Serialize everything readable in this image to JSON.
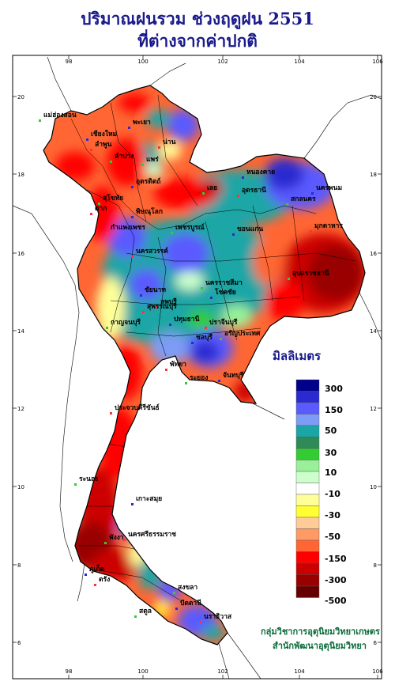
{
  "title": {
    "line1": "ปริมาณฝนรวม ช่วงฤดูฝน 2551",
    "line2": "ที่ต่างจากค่าปกติ"
  },
  "axes": {
    "lon_labels": [
      "98",
      "100",
      "102",
      "104",
      "106"
    ],
    "lat_labels": [
      "20",
      "18",
      "16",
      "14",
      "12",
      "10",
      "8",
      "6"
    ]
  },
  "legend": {
    "title": "มิลลิเมตร",
    "bins": [
      {
        "color": "#00008b"
      },
      {
        "color": "#2a2ad0"
      },
      {
        "color": "#5a5aff"
      },
      {
        "color": "#7d9cf5"
      },
      {
        "color": "#1aa6a6"
      },
      {
        "color": "#2e8b57"
      },
      {
        "color": "#33cc33"
      },
      {
        "color": "#99f099"
      },
      {
        "color": "#ccffcc"
      },
      {
        "color": "#ffffff"
      },
      {
        "color": "#ffff99"
      },
      {
        "color": "#ffff33"
      },
      {
        "color": "#ffcc99"
      },
      {
        "color": "#ff9966"
      },
      {
        "color": "#ff6633"
      },
      {
        "color": "#ff0000"
      },
      {
        "color": "#cc0000"
      },
      {
        "color": "#990000"
      },
      {
        "color": "#660000"
      }
    ],
    "labels": [
      {
        "text": "300"
      },
      {
        "text": "150"
      },
      {
        "text": "50"
      },
      {
        "text": "30"
      },
      {
        "text": "10"
      },
      {
        "text": "-10"
      },
      {
        "text": "-30"
      },
      {
        "text": "-50"
      },
      {
        "text": "-150"
      },
      {
        "text": "-300"
      },
      {
        "text": "-500"
      }
    ]
  },
  "credit": {
    "line1": "กลุ่มวิชาการอุตุนิยมวิทยาเกษตร",
    "line2": "สำนักพัฒนาอุตุนิยมวิทยา"
  },
  "cities": [
    {
      "name": "แม่ฮ่องสอน"
    },
    {
      "name": "เชียงใหม่"
    },
    {
      "name": "ลำพูน"
    },
    {
      "name": "ลำปาง"
    },
    {
      "name": "พะเยา"
    },
    {
      "name": "น่าน"
    },
    {
      "name": "แพร่"
    },
    {
      "name": "อุตรดิตถ์"
    },
    {
      "name": "ตาก"
    },
    {
      "name": "สุโขทัย"
    },
    {
      "name": "พิษณุโลก"
    },
    {
      "name": "กำแพงเพชร"
    },
    {
      "name": "เพชรบูรณ์"
    },
    {
      "name": "หนองคาย"
    },
    {
      "name": "อุดรธานี"
    },
    {
      "name": "สกลนคร"
    },
    {
      "name": "นครพนม"
    },
    {
      "name": "มุกดาหาร"
    },
    {
      "name": "เลย"
    },
    {
      "name": "ขอนแก่น"
    },
    {
      "name": "นครสวรรค์"
    },
    {
      "name": "อุบลราชธานี"
    },
    {
      "name": "ชัยนาท"
    },
    {
      "name": "ลพบุรี"
    },
    {
      "name": "นครราชสีมา"
    },
    {
      "name": "โชคชัย"
    },
    {
      "name": "สุพรรณบุรี"
    },
    {
      "name": "กาญจนบุรี"
    },
    {
      "name": "ปทุมธานี"
    },
    {
      "name": "ปราจีนบุรี"
    },
    {
      "name": "อรัญประเทศ"
    },
    {
      "name": "ชลบุรี"
    },
    {
      "name": "พัทยา"
    },
    {
      "name": "ระยอง"
    },
    {
      "name": "จันทบุรี"
    },
    {
      "name": "ประจวบคีรีขันธ์"
    },
    {
      "name": "ระนอง"
    },
    {
      "name": "เกาะสมุย"
    },
    {
      "name": "นครศรีธรรมราช"
    },
    {
      "name": "พังงา"
    },
    {
      "name": "ภูเก็ต"
    },
    {
      "name": "ตรัง"
    },
    {
      "name": "สงขลา"
    },
    {
      "name": "ปัตตานี"
    },
    {
      "name": "นราธิวาส"
    },
    {
      "name": "สตูล"
    }
  ]
}
